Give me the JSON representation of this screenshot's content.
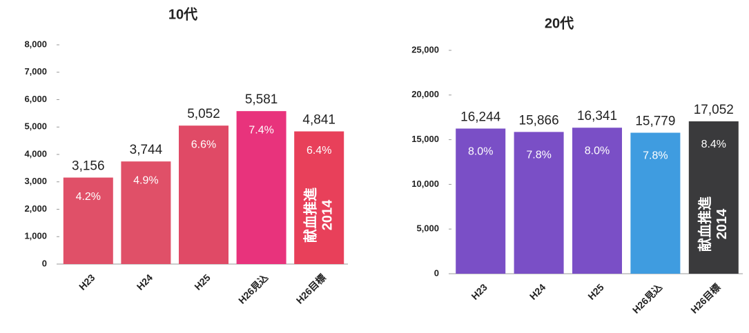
{
  "chart_data": [
    {
      "type": "bar",
      "title": "10代",
      "categories": [
        "H23",
        "H24",
        "H25",
        "H26見込",
        "H26目標"
      ],
      "values": [
        3156,
        3744,
        5052,
        5581,
        4841
      ],
      "value_labels": [
        "3,156",
        "3,744",
        "5,052",
        "5,581",
        "4,841"
      ],
      "share_labels": [
        "4.2%",
        "4.9%",
        "6.6%",
        "7.4%",
        "6.4%"
      ],
      "colors": [
        "#e05068",
        "#e05068",
        "#e04a66",
        "#e8337c",
        "#e8405a"
      ],
      "badge": [
        "献血推進",
        "2014"
      ],
      "ylim": [
        0,
        8000
      ],
      "yticks": [
        0,
        {
          "value": 1000,
          "label": "1,000"
        },
        {
          "value": 2000,
          "label": "2,000"
        },
        {
          "value": 3000,
          "label": "3,000"
        },
        {
          "value": 4000,
          "label": "4,000"
        },
        {
          "value": 5000,
          "label": "5,000"
        },
        {
          "value": 6000,
          "label": "6,000"
        },
        {
          "value": 7000,
          "label": "7,000"
        },
        {
          "value": 8000,
          "label": "8,000"
        }
      ]
    },
    {
      "type": "bar",
      "title": "20代",
      "categories": [
        "H23",
        "H24",
        "H25",
        "H26見込",
        "H26目標"
      ],
      "values": [
        16244,
        15866,
        16341,
        15779,
        17052
      ],
      "value_labels": [
        "16,244",
        "15,866",
        "16,341",
        "15,779",
        "17,052"
      ],
      "share_labels": [
        "8.0%",
        "7.8%",
        "8.0%",
        "7.8%",
        "8.4%"
      ],
      "colors": [
        "#7a4fc6",
        "#7a4fc6",
        "#7a4fc6",
        "#3f9ce0",
        "#3a3a3c"
      ],
      "badge": [
        "献血推進",
        "2014"
      ],
      "ylim": [
        0,
        25000
      ],
      "yticks": [
        0,
        {
          "value": 5000,
          "label": "5,000"
        },
        {
          "value": 10000,
          "label": "10,000"
        },
        {
          "value": 15000,
          "label": "15,000"
        },
        {
          "value": 20000,
          "label": "20,000"
        },
        {
          "value": 25000,
          "label": "25,000"
        }
      ]
    }
  ]
}
